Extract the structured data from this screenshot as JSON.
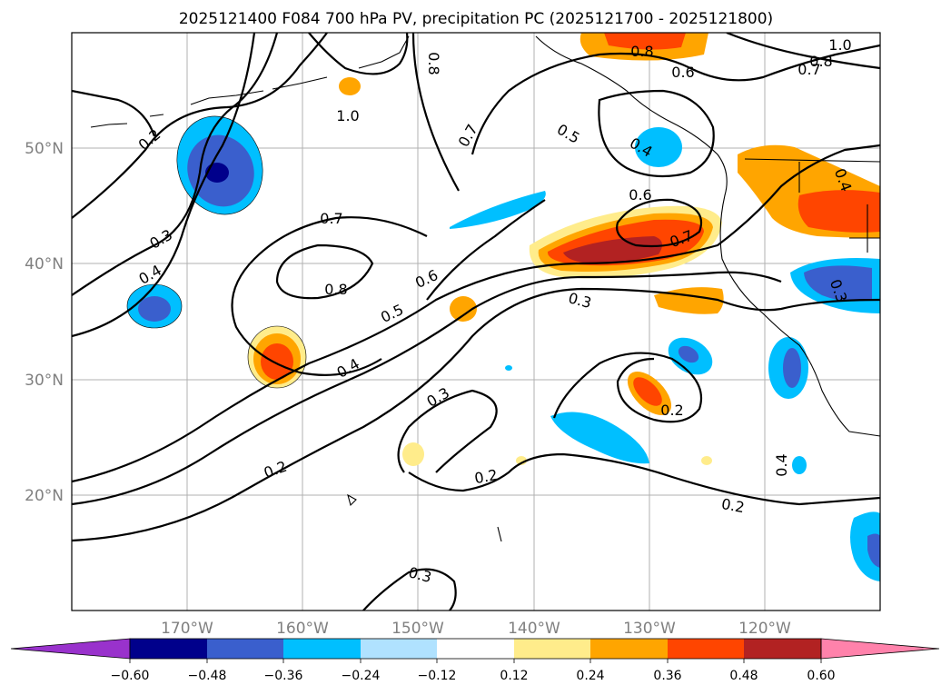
{
  "title": "2025121400 F084 700 hPa PV, precipitation PC (2025121700 - 2025121800)",
  "lat_labels": [
    "50°N",
    "40°N",
    "30°N",
    "20°N"
  ],
  "lon_labels": [
    "170°W",
    "160°W",
    "150°W",
    "140°W",
    "130°W",
    "120°W"
  ],
  "contour_labels": [
    "1.0",
    "0.8",
    "0.8",
    "1.0",
    "0.8",
    "0.7",
    "0.6",
    "0.7",
    "0.5",
    "0.4",
    "0.2",
    "0.3",
    "0.4",
    "0.7",
    "0.8",
    "0.6",
    "0.5",
    "0.6",
    "0.7",
    "0.3",
    "0.4",
    "0.4",
    "0.3",
    "0.3",
    "0.2",
    "0.2",
    "0.2",
    "0.4",
    "0.2",
    "0.3"
  ],
  "colorbar": {
    "ticks": [
      "−0.60",
      "−0.48",
      "−0.36",
      "−0.24",
      "−0.12",
      "0.12",
      "0.24",
      "0.36",
      "0.48",
      "0.60"
    ],
    "colors": {
      "under": "#9932cc",
      "bins": [
        "#00008b",
        "#3a5fcd",
        "#00bfff",
        "#b0e2ff",
        "#ffffff",
        "#ffec8b",
        "#ffa500",
        "#ff4500",
        "#b22222"
      ],
      "over": "#ff82ab"
    }
  }
}
